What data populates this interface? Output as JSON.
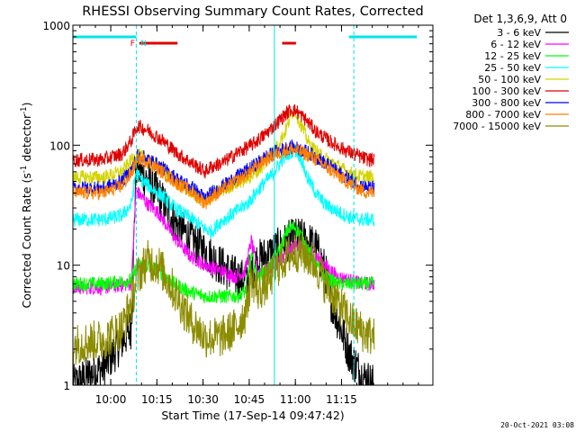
{
  "chart_data": {
    "type": "line",
    "title": "RHESSI Observing Summary Count Rates, Corrected",
    "ylabel_main": "Corrected Count Rate (s",
    "ylabel_sup1": "-1",
    "ylabel_mid": " detector",
    "ylabel_sup2": "-1",
    "ylabel_end": ")",
    "xlabel": "Start Time (17-Sep-14 09:47:42)",
    "timestamp": "20-Oct-2021 03:08",
    "legend_title": "Det 1,3,6,9, Att 0",
    "x_range_min": [
      0,
      117
    ],
    "ylim": [
      1,
      1000
    ],
    "yscale": "log",
    "x_ticks": [
      {
        "label": "10:00",
        "t": 12.3
      },
      {
        "label": "10:15",
        "t": 27.3
      },
      {
        "label": "10:30",
        "t": 42.3
      },
      {
        "label": "10:45",
        "t": 57.3
      },
      {
        "label": "11:00",
        "t": 72.3
      },
      {
        "label": "11:15",
        "t": 87.3
      }
    ],
    "y_ticks": [
      {
        "label": "1",
        "v": 1
      },
      {
        "label": "10",
        "v": 10
      },
      {
        "label": "100",
        "v": 100
      },
      {
        "label": "1000",
        "v": 1000
      }
    ],
    "night_markers_min": [
      20.6,
      91.3
    ],
    "day_markers_min": [
      65.5
    ],
    "flag_labels": [
      {
        "label": "F",
        "t": 19.4
      },
      {
        "label": "N",
        "t": 23.0
      }
    ],
    "flag_bars": [
      {
        "name": "night",
        "color": "#00e5e5",
        "segments": [
          [
            0,
            20.6
          ],
          [
            89.8,
            111.8
          ]
        ]
      },
      {
        "name": "flare",
        "color": "#e00000",
        "segments": [
          [
            21.6,
            34.0
          ],
          [
            68.0,
            72.5
          ]
        ]
      }
    ],
    "series": [
      {
        "name": "3 - 6 keV",
        "color": "#000000",
        "key": [
          [
            0,
            1.0
          ],
          [
            5,
            1.2
          ],
          [
            10,
            1.4
          ],
          [
            19,
            3
          ],
          [
            20.5,
            65
          ],
          [
            24,
            52
          ],
          [
            28,
            38
          ],
          [
            33,
            23
          ],
          [
            38,
            17
          ],
          [
            43,
            13
          ],
          [
            48,
            10
          ],
          [
            53,
            8
          ],
          [
            56,
            7.5
          ],
          [
            58,
            9
          ],
          [
            60,
            11
          ],
          [
            63,
            12
          ],
          [
            67,
            14
          ],
          [
            70,
            16
          ],
          [
            73,
            17
          ],
          [
            76,
            16
          ],
          [
            79,
            14
          ],
          [
            82,
            9
          ],
          [
            84,
            5
          ],
          [
            87,
            3
          ],
          [
            90,
            1.8
          ],
          [
            94,
            1.2
          ],
          [
            98,
            1.0
          ]
        ]
      },
      {
        "name": "6 - 12 keV",
        "color": "#ff00ff",
        "key": [
          [
            0,
            6.5
          ],
          [
            10,
            6.5
          ],
          [
            19,
            7
          ],
          [
            20.5,
            42
          ],
          [
            24,
            33
          ],
          [
            28,
            27
          ],
          [
            33,
            17
          ],
          [
            38,
            12
          ],
          [
            43,
            10
          ],
          [
            48,
            9
          ],
          [
            53,
            8
          ],
          [
            56,
            9
          ],
          [
            58,
            16
          ],
          [
            60,
            9
          ],
          [
            63,
            9
          ],
          [
            67,
            11
          ],
          [
            70,
            13
          ],
          [
            73,
            15
          ],
          [
            76,
            14
          ],
          [
            79,
            12
          ],
          [
            82,
            10
          ],
          [
            86,
            8
          ],
          [
            90,
            7.5
          ],
          [
            94,
            7
          ],
          [
            98,
            7
          ]
        ]
      },
      {
        "name": "12 - 25 keV",
        "color": "#00ff00",
        "key": [
          [
            0,
            7
          ],
          [
            10,
            7
          ],
          [
            19,
            7.5
          ],
          [
            21,
            10
          ],
          [
            24,
            10
          ],
          [
            28,
            9
          ],
          [
            33,
            7
          ],
          [
            38,
            6
          ],
          [
            43,
            5.5
          ],
          [
            48,
            5.5
          ],
          [
            53,
            5.5
          ],
          [
            56,
            6
          ],
          [
            58,
            12
          ],
          [
            60,
            8
          ],
          [
            63,
            9
          ],
          [
            67,
            13
          ],
          [
            70,
            20
          ],
          [
            72,
            21
          ],
          [
            74,
            18
          ],
          [
            76,
            14
          ],
          [
            79,
            10
          ],
          [
            82,
            8
          ],
          [
            86,
            7
          ],
          [
            90,
            7
          ],
          [
            94,
            7
          ],
          [
            98,
            7
          ]
        ]
      },
      {
        "name": "25 - 50 keV",
        "color": "#00ffff",
        "key": [
          [
            0,
            24
          ],
          [
            10,
            24
          ],
          [
            16,
            26
          ],
          [
            19,
            32
          ],
          [
            20.5,
            60
          ],
          [
            22,
            52
          ],
          [
            25,
            45
          ],
          [
            29,
            38
          ],
          [
            33,
            30
          ],
          [
            38,
            25
          ],
          [
            43,
            20
          ],
          [
            45,
            19
          ],
          [
            48,
            23
          ],
          [
            53,
            28
          ],
          [
            57,
            33
          ],
          [
            61,
            45
          ],
          [
            65,
            58
          ],
          [
            68,
            75
          ],
          [
            70,
            85
          ],
          [
            72,
            92
          ],
          [
            74,
            80
          ],
          [
            76,
            55
          ],
          [
            79,
            40
          ],
          [
            82,
            32
          ],
          [
            86,
            28
          ],
          [
            90,
            25
          ],
          [
            94,
            24
          ],
          [
            98,
            24
          ]
        ]
      },
      {
        "name": "50 - 100 keV",
        "color": "#d4d400",
        "key": [
          [
            0,
            54
          ],
          [
            10,
            54
          ],
          [
            16,
            60
          ],
          [
            19,
            75
          ],
          [
            21,
            82
          ],
          [
            24,
            78
          ],
          [
            29,
            62
          ],
          [
            34,
            48
          ],
          [
            39,
            40
          ],
          [
            43,
            34
          ],
          [
            45,
            38
          ],
          [
            49,
            43
          ],
          [
            53,
            48
          ],
          [
            58,
            55
          ],
          [
            62,
            68
          ],
          [
            66,
            95
          ],
          [
            69,
            130
          ],
          [
            71,
            180
          ],
          [
            72,
            200
          ],
          [
            74,
            150
          ],
          [
            77,
            100
          ],
          [
            81,
            80
          ],
          [
            85,
            70
          ],
          [
            89,
            60
          ],
          [
            93,
            55
          ],
          [
            98,
            54
          ]
        ]
      },
      {
        "name": "100 - 300 keV",
        "color": "#e00000",
        "key": [
          [
            0,
            75
          ],
          [
            10,
            76
          ],
          [
            16,
            85
          ],
          [
            19,
            110
          ],
          [
            21,
            145
          ],
          [
            24,
            135
          ],
          [
            29,
            110
          ],
          [
            34,
            85
          ],
          [
            39,
            70
          ],
          [
            43,
            60
          ],
          [
            45,
            66
          ],
          [
            49,
            72
          ],
          [
            53,
            85
          ],
          [
            58,
            100
          ],
          [
            62,
            120
          ],
          [
            66,
            150
          ],
          [
            69,
            180
          ],
          [
            71,
            200
          ],
          [
            73,
            190
          ],
          [
            76,
            160
          ],
          [
            79,
            130
          ],
          [
            83,
            110
          ],
          [
            87,
            95
          ],
          [
            91,
            85
          ],
          [
            95,
            77
          ],
          [
            98,
            75
          ]
        ]
      },
      {
        "name": "300 - 800 keV",
        "color": "#0000ff",
        "key": [
          [
            0,
            44
          ],
          [
            10,
            44
          ],
          [
            16,
            50
          ],
          [
            19,
            62
          ],
          [
            21,
            82
          ],
          [
            24,
            78
          ],
          [
            29,
            65
          ],
          [
            34,
            52
          ],
          [
            39,
            44
          ],
          [
            43,
            36
          ],
          [
            45,
            40
          ],
          [
            49,
            46
          ],
          [
            53,
            54
          ],
          [
            58,
            65
          ],
          [
            62,
            78
          ],
          [
            66,
            88
          ],
          [
            69,
            94
          ],
          [
            71,
            96
          ],
          [
            73,
            94
          ],
          [
            76,
            88
          ],
          [
            79,
            80
          ],
          [
            83,
            68
          ],
          [
            87,
            58
          ],
          [
            91,
            50
          ],
          [
            95,
            45
          ],
          [
            98,
            44
          ]
        ]
      },
      {
        "name": "800 - 7000 keV",
        "color": "#ff8000",
        "key": [
          [
            0,
            40
          ],
          [
            10,
            40
          ],
          [
            16,
            46
          ],
          [
            19,
            58
          ],
          [
            21,
            78
          ],
          [
            24,
            74
          ],
          [
            29,
            60
          ],
          [
            34,
            48
          ],
          [
            39,
            40
          ],
          [
            43,
            33
          ],
          [
            45,
            37
          ],
          [
            49,
            43
          ],
          [
            53,
            50
          ],
          [
            58,
            61
          ],
          [
            62,
            74
          ],
          [
            66,
            84
          ],
          [
            69,
            90
          ],
          [
            71,
            92
          ],
          [
            73,
            90
          ],
          [
            76,
            84
          ],
          [
            79,
            76
          ],
          [
            83,
            64
          ],
          [
            87,
            54
          ],
          [
            91,
            46
          ],
          [
            95,
            41
          ],
          [
            98,
            40
          ]
        ]
      },
      {
        "name": "7000 - 15000 keV",
        "color": "#8c8c00",
        "key": [
          [
            0,
            2.2
          ],
          [
            10,
            2.4
          ],
          [
            16,
            3
          ],
          [
            19,
            5
          ],
          [
            21,
            8
          ],
          [
            24,
            11
          ],
          [
            28,
            10
          ],
          [
            33,
            6
          ],
          [
            38,
            3.5
          ],
          [
            43,
            2.5
          ],
          [
            48,
            2.5
          ],
          [
            53,
            3
          ],
          [
            56,
            4
          ],
          [
            58,
            8
          ],
          [
            60,
            6
          ],
          [
            63,
            7
          ],
          [
            67,
            10
          ],
          [
            70,
            12
          ],
          [
            73,
            13
          ],
          [
            76,
            12
          ],
          [
            79,
            10
          ],
          [
            82,
            7
          ],
          [
            86,
            5
          ],
          [
            90,
            3.5
          ],
          [
            94,
            2.8
          ],
          [
            98,
            2.5
          ]
        ]
      }
    ]
  }
}
